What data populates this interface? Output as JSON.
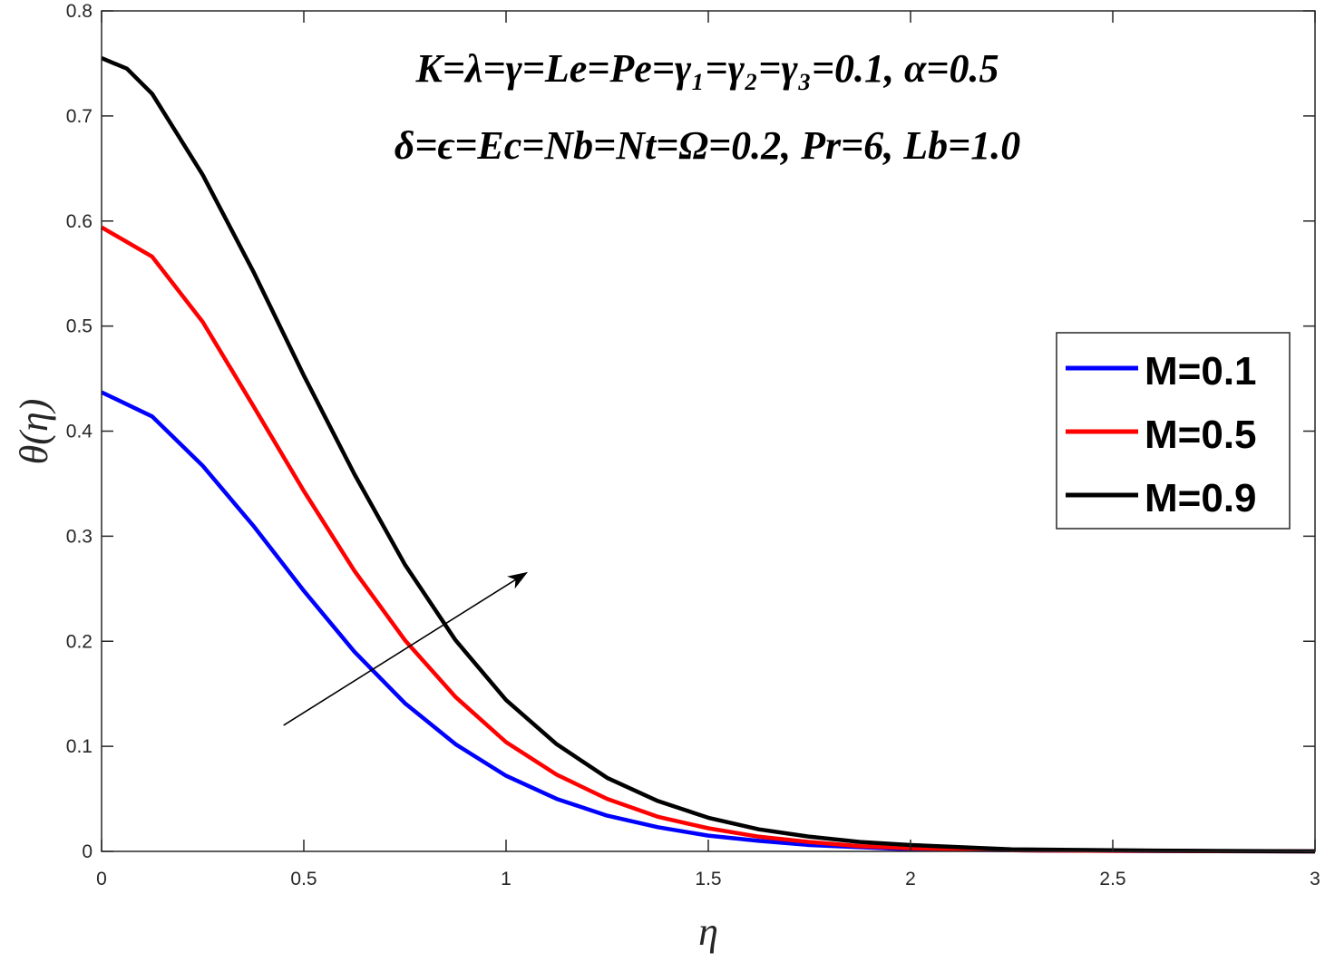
{
  "chart_data": {
    "type": "line",
    "title": "",
    "xlabel": "η",
    "ylabel": "θ(η)",
    "xlim": [
      0,
      3
    ],
    "ylim": [
      0,
      0.8
    ],
    "x_ticks": [
      0,
      0.5,
      1,
      1.5,
      2,
      2.5,
      3
    ],
    "x_tick_labels": [
      "0",
      "0.5",
      "1",
      "1.5",
      "2",
      "2.5",
      "3"
    ],
    "y_ticks": [
      0,
      0.1,
      0.2,
      0.3,
      0.4,
      0.5,
      0.6,
      0.7,
      0.8
    ],
    "y_tick_labels": [
      "0",
      "0.1",
      "0.2",
      "0.3",
      "0.4",
      "0.5",
      "0.6",
      "0.7",
      "0.8"
    ],
    "grid": false,
    "legend_position": "right",
    "annotation_lines": [
      "K=λ=γ=Le=Pe=γ₁=γ₂=γ₃=0.1, α=0.5",
      "δ=ϵ=Ec=Nb=Nt=Ω=0.2, Pr=6, Lb=1.0"
    ],
    "arrow": {
      "from": [
        0.45,
        0.12
      ],
      "to": [
        1.05,
        0.265
      ],
      "meaning": "increasing M"
    },
    "series": [
      {
        "name": "M=0.1",
        "color": "#0000ff",
        "x": [
          0,
          0.125,
          0.25,
          0.375,
          0.5,
          0.625,
          0.75,
          0.875,
          1,
          1.125,
          1.25,
          1.375,
          1.5,
          1.625,
          1.75,
          1.875,
          2,
          2.25,
          2.5,
          2.75,
          3
        ],
        "y": [
          0.437,
          0.414,
          0.367,
          0.31,
          0.248,
          0.19,
          0.141,
          0.102,
          0.072,
          0.05,
          0.034,
          0.023,
          0.015,
          0.01,
          0.006,
          0.004,
          0.002,
          0.001,
          0.0005,
          0.0002,
          0.0
        ]
      },
      {
        "name": "M=0.5",
        "color": "#ff0000",
        "x": [
          0,
          0.125,
          0.25,
          0.375,
          0.5,
          0.625,
          0.75,
          0.875,
          1,
          1.125,
          1.25,
          1.375,
          1.5,
          1.625,
          1.75,
          1.875,
          2,
          2.25,
          2.5,
          2.75,
          3
        ],
        "y": [
          0.594,
          0.566,
          0.504,
          0.424,
          0.343,
          0.267,
          0.201,
          0.147,
          0.104,
          0.073,
          0.05,
          0.033,
          0.022,
          0.014,
          0.009,
          0.005,
          0.003,
          0.001,
          0.0005,
          0.0002,
          0.0
        ]
      },
      {
        "name": "M=0.9",
        "color": "#000000",
        "x": [
          0,
          0.0625,
          0.125,
          0.25,
          0.375,
          0.5,
          0.625,
          0.75,
          0.875,
          1,
          1.125,
          1.25,
          1.375,
          1.5,
          1.625,
          1.75,
          1.875,
          2,
          2.25,
          2.5,
          2.75,
          3
        ],
        "y": [
          0.755,
          0.745,
          0.721,
          0.644,
          0.552,
          0.453,
          0.359,
          0.273,
          0.201,
          0.144,
          0.102,
          0.07,
          0.048,
          0.032,
          0.021,
          0.014,
          0.009,
          0.006,
          0.002,
          0.001,
          0.0004,
          0.0
        ]
      }
    ]
  }
}
